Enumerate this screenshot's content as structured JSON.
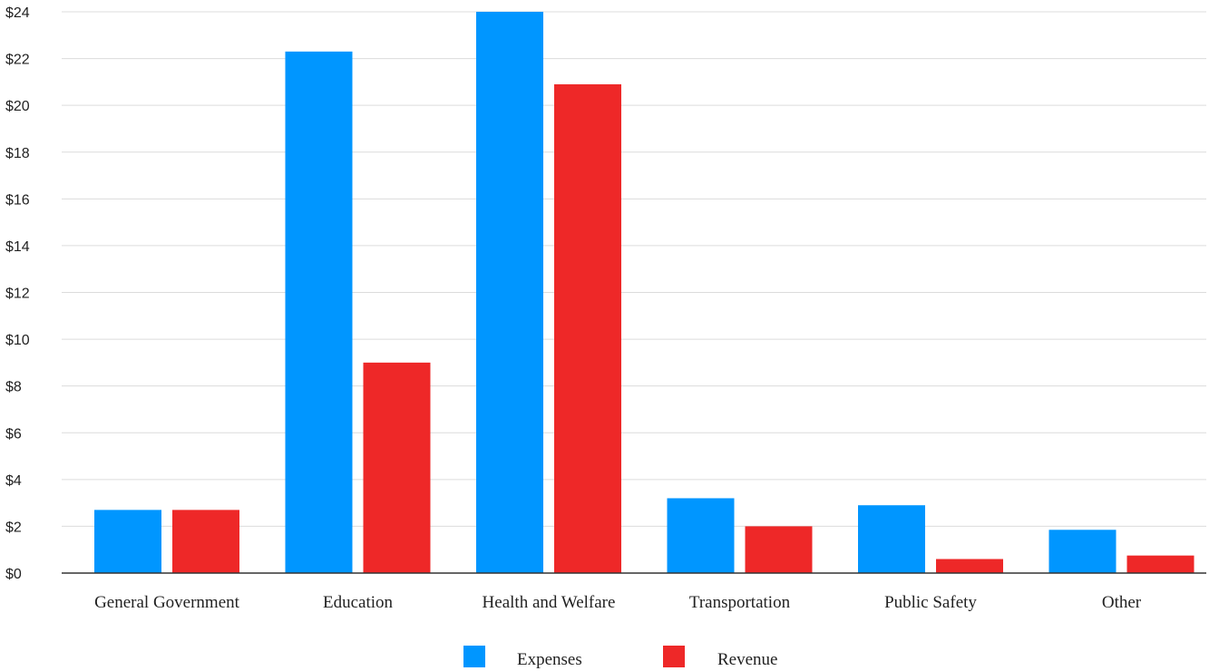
{
  "chart_data": {
    "type": "bar",
    "title": "",
    "xlabel": "",
    "ylabel": "",
    "categories": [
      "General Government",
      "Education",
      "Health and Welfare",
      "Transportation",
      "Public Safety",
      "Other"
    ],
    "series": [
      {
        "name": "Expenses",
        "color": "#0096FF",
        "values": [
          2.7,
          22.3,
          24.0,
          3.2,
          2.9,
          1.85
        ]
      },
      {
        "name": "Revenue",
        "color": "#EE2828",
        "values": [
          2.7,
          9.0,
          20.9,
          2.0,
          0.6,
          0.75
        ]
      }
    ],
    "ylim": [
      0,
      24
    ],
    "yticks": [
      0,
      2,
      4,
      6,
      8,
      10,
      12,
      14,
      16,
      18,
      20,
      22,
      24
    ],
    "ytick_labels": [
      "$0",
      "$2",
      "$4",
      "$6",
      "$8",
      "$10",
      "$12",
      "$14",
      "$16",
      "$18",
      "$20",
      "$22",
      "$24"
    ],
    "grid": true,
    "legend_position": "bottom-center"
  }
}
